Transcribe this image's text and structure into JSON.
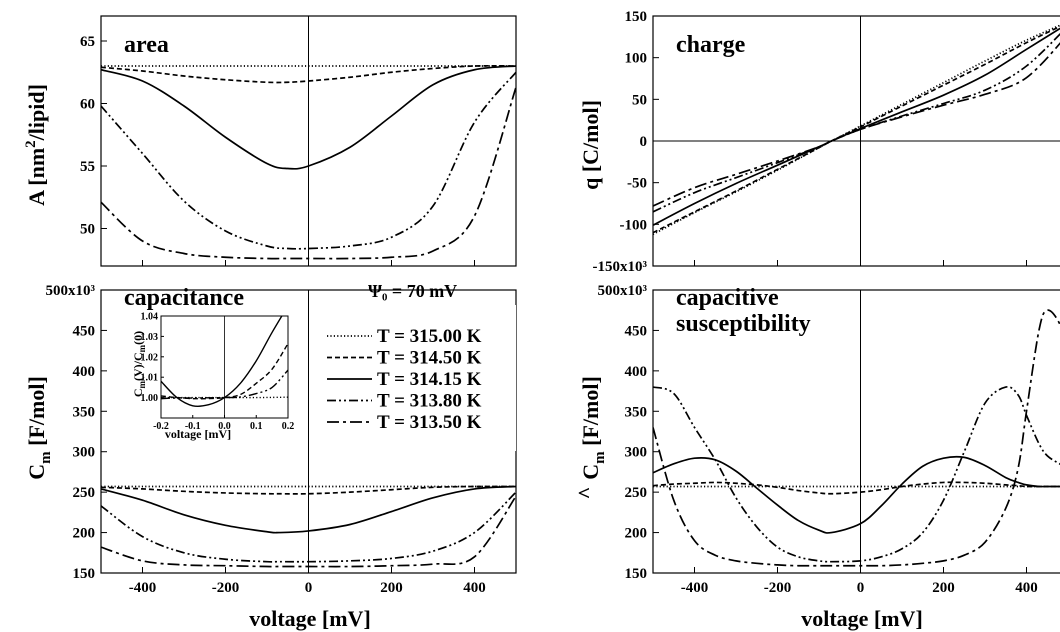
{
  "styles": {
    "s315_00": "1.2 2.2",
    "s314_50": "5 3",
    "s314_15": "",
    "s313_80": "9 3 2 3 2 3",
    "s313_50": "12 4 3 4"
  },
  "legend": {
    "psi_label": "Ψ₀ = 70 mV",
    "entries": [
      {
        "label": "T = 315.00 K",
        "style": "s315_00"
      },
      {
        "label": "T = 314.50 K",
        "style": "s314_50"
      },
      {
        "label": "T = 314.15 K",
        "style": "s314_15"
      },
      {
        "label": "T = 313.80 K",
        "style": "s313_80"
      },
      {
        "label": "T = 313.50 K",
        "style": "s313_50"
      }
    ]
  },
  "chart_data": [
    {
      "id": "area",
      "type": "line",
      "title": "area",
      "xlabel": "",
      "ylabel": "A [nm²/lipid]",
      "xlim": [
        -500,
        500
      ],
      "ylim": [
        47,
        67
      ],
      "x_ticks": [
        -400,
        -200,
        0,
        200,
        400
      ],
      "x_tick_labels": [
        "",
        "",
        "",
        "",
        ""
      ],
      "y_ticks": [
        50,
        55,
        60,
        65
      ],
      "y_tick_labels": [
        "50",
        "55",
        "60",
        "65"
      ],
      "zero_lines": {
        "x": true,
        "y": false
      },
      "x": [
        -500,
        -400,
        -300,
        -200,
        -100,
        -50,
        0,
        100,
        200,
        300,
        400,
        500
      ],
      "series": [
        {
          "style": "s315_00",
          "values": [
            63.0,
            63.0,
            63.0,
            63.0,
            63.0,
            63.0,
            63.0,
            63.0,
            63.0,
            63.0,
            63.0,
            63.0
          ]
        },
        {
          "style": "s314_50",
          "values": [
            62.9,
            62.6,
            62.2,
            61.9,
            61.7,
            61.7,
            61.8,
            62.1,
            62.5,
            62.8,
            63.0,
            63.0
          ]
        },
        {
          "style": "s314_15",
          "values": [
            62.7,
            61.8,
            59.8,
            57.3,
            55.2,
            54.8,
            55.0,
            56.5,
            59.0,
            61.5,
            62.7,
            63.0
          ]
        },
        {
          "style": "s313_80",
          "values": [
            59.8,
            56.0,
            52.2,
            49.8,
            48.6,
            48.4,
            48.4,
            48.6,
            49.3,
            51.8,
            58.5,
            62.5
          ]
        },
        {
          "style": "s313_50",
          "values": [
            52.1,
            49.0,
            48.0,
            47.7,
            47.6,
            47.6,
            47.6,
            47.6,
            47.7,
            48.2,
            51.0,
            61.3
          ]
        }
      ]
    },
    {
      "id": "charge",
      "type": "line",
      "title": "charge",
      "xlabel": "",
      "ylabel": "q [C/mol]",
      "xlim": [
        -500,
        500
      ],
      "ylim": [
        -150000,
        150000
      ],
      "x_ticks": [
        -400,
        -200,
        0,
        200,
        400
      ],
      "x_tick_labels": [
        "",
        "",
        "",
        "",
        ""
      ],
      "y_ticks": [
        -150000,
        -100000,
        -50000,
        0,
        50000,
        100000,
        150000
      ],
      "y_tick_labels": [
        "-150x10³",
        "-100",
        "-50",
        "0",
        "50",
        "100",
        "150"
      ],
      "zero_lines": {
        "x": true,
        "y": true
      },
      "x": [
        -500,
        -400,
        -300,
        -200,
        -100,
        -70,
        0,
        100,
        200,
        300,
        400,
        500
      ],
      "series": [
        {
          "style": "s315_00",
          "values": [
            -112000,
            -86000,
            -61000,
            -35000,
            -8000,
            0,
            18000,
            44000,
            70000,
            96000,
            121000,
            143000
          ]
        },
        {
          "style": "s314_50",
          "values": [
            -110000,
            -85000,
            -60000,
            -34000,
            -8000,
            0,
            17000,
            42000,
            67000,
            92000,
            118000,
            142000
          ]
        },
        {
          "style": "s314_15",
          "values": [
            -101000,
            -75000,
            -51000,
            -29000,
            -7000,
            0,
            15000,
            35000,
            55000,
            79000,
            110000,
            141000
          ]
        },
        {
          "style": "s313_80",
          "values": [
            -85000,
            -62000,
            -44000,
            -26000,
            -7000,
            0,
            14000,
            30000,
            45000,
            61000,
            90000,
            138000
          ]
        },
        {
          "style": "s313_50",
          "values": [
            -78000,
            -56000,
            -40000,
            -24000,
            -7000,
            0,
            14000,
            29000,
            43000,
            56000,
            76000,
            128000
          ]
        }
      ]
    },
    {
      "id": "capacitance",
      "type": "line",
      "title": "capacitance",
      "xlabel": "voltage [mV]",
      "ylabel": "Cm [F/mol]",
      "xlim": [
        -500,
        500
      ],
      "ylim": [
        150000,
        500000
      ],
      "x_ticks": [
        -400,
        -200,
        0,
        200,
        400
      ],
      "x_tick_labels": [
        "-400",
        "-200",
        "0",
        "200",
        "400"
      ],
      "y_ticks": [
        150000,
        200000,
        250000,
        300000,
        350000,
        400000,
        450000,
        500000
      ],
      "y_tick_labels": [
        "150",
        "200",
        "250",
        "300",
        "350",
        "400",
        "450",
        "500x10³"
      ],
      "zero_lines": {
        "x": true,
        "y": false
      },
      "x": [
        -500,
        -400,
        -300,
        -200,
        -100,
        -70,
        0,
        100,
        200,
        300,
        400,
        500
      ],
      "series": [
        {
          "style": "s315_00",
          "values": [
            257000,
            257000,
            257000,
            257000,
            257000,
            257000,
            257000,
            257000,
            257000,
            257000,
            257000,
            257000
          ]
        },
        {
          "style": "s314_50",
          "values": [
            256000,
            254000,
            251000,
            249000,
            248000,
            248000,
            248000,
            250000,
            253000,
            256000,
            257000,
            257000
          ]
        },
        {
          "style": "s314_15",
          "values": [
            254000,
            240000,
            222000,
            209000,
            201000,
            200000,
            202000,
            210000,
            226000,
            243000,
            254000,
            257000
          ]
        },
        {
          "style": "s313_80",
          "values": [
            233000,
            195000,
            175000,
            167000,
            164000,
            164000,
            164000,
            165000,
            168000,
            177000,
            200000,
            250000
          ]
        },
        {
          "style": "s313_50",
          "values": [
            182000,
            165000,
            160000,
            159000,
            158000,
            158000,
            158000,
            158000,
            159000,
            161000,
            170000,
            245000
          ]
        }
      ],
      "inset": {
        "xlim": [
          -0.2,
          0.2
        ],
        "ylim": [
          0.99,
          1.04
        ],
        "x_ticks": [
          -0.2,
          -0.1,
          0.0,
          0.1,
          0.2
        ],
        "x_tick_labels": [
          "-0.2",
          "-0.1",
          "0.0",
          "0.1",
          "0.2"
        ],
        "y_ticks": [
          1.0,
          1.01,
          1.02,
          1.03,
          1.04
        ],
        "y_tick_labels": [
          "1.00",
          "1.01",
          "1.02",
          "1.03",
          "1.04"
        ],
        "xlabel": "voltage [mV]",
        "ylabel": "Cm(V)/Cm(0)",
        "x": [
          -0.2,
          -0.15,
          -0.1,
          -0.05,
          0.0,
          0.05,
          0.1,
          0.15,
          0.2
        ],
        "series": [
          {
            "style": "s315_00",
            "values": [
              1.0,
              1.0,
              1.0,
              1.0,
              1.0,
              1.0,
              1.0,
              1.0001,
              1.0002
            ]
          },
          {
            "style": "s314_50",
            "values": [
              1.0008,
              1.0,
              0.9995,
              0.9995,
              1.0,
              1.0015,
              1.007,
              1.014,
              1.0265
            ]
          },
          {
            "style": "s314_15",
            "values": [
              1.008,
              1.0,
              0.996,
              0.9965,
              1.0,
              1.007,
              1.018,
              1.032,
              1.045
            ]
          },
          {
            "style": "s313_80",
            "values": [
              0.9995,
              0.9998,
              0.9998,
              0.9999,
              1.0,
              1.0003,
              1.002,
              1.005,
              1.0135
            ]
          }
        ]
      }
    },
    {
      "id": "susceptibility",
      "type": "line",
      "title": "capacitive\nsusceptibility",
      "xlabel": "voltage [mV]",
      "ylabel": "Cm [F/mol]",
      "xlim": [
        -500,
        500
      ],
      "ylim": [
        150000,
        500000
      ],
      "x_ticks": [
        -400,
        -200,
        0,
        200,
        400
      ],
      "x_tick_labels": [
        "-400",
        "-200",
        "0",
        "200",
        "400"
      ],
      "y_ticks": [
        150000,
        200000,
        250000,
        300000,
        350000,
        400000,
        450000,
        500000
      ],
      "y_tick_labels": [
        "150",
        "200",
        "250",
        "300",
        "350",
        "400",
        "450",
        "500x10³"
      ],
      "zero_lines": {
        "x": true,
        "y": false
      },
      "x": [
        -500,
        -450,
        -400,
        -350,
        -300,
        -250,
        -200,
        -150,
        -100,
        -70,
        0,
        50,
        100,
        150,
        200,
        250,
        300,
        350,
        380,
        400,
        430,
        450,
        480,
        500
      ],
      "series": [
        {
          "style": "s315_00",
          "values": [
            257000,
            257000,
            257000,
            257000,
            257000,
            257000,
            257000,
            257000,
            257000,
            257000,
            257000,
            257000,
            257000,
            257000,
            257000,
            257000,
            257000,
            257000,
            257000,
            257000,
            257000,
            257000,
            257000,
            257000
          ]
        },
        {
          "style": "s314_50",
          "values": [
            258000,
            260000,
            261000,
            262000,
            261000,
            259000,
            256000,
            252000,
            249000,
            248000,
            250000,
            253000,
            257000,
            260000,
            262000,
            262000,
            261000,
            259000,
            258000,
            257000,
            257000,
            257000,
            257000,
            257000
          ]
        },
        {
          "style": "s314_15",
          "values": [
            274000,
            285000,
            292000,
            290000,
            276000,
            255000,
            234000,
            215000,
            203000,
            200000,
            211000,
            233000,
            260000,
            282000,
            292000,
            293000,
            283000,
            268000,
            262000,
            259000,
            257000,
            257000,
            257000,
            257000
          ]
        },
        {
          "style": "s313_80",
          "values": [
            380000,
            372000,
            330000,
            290000,
            243000,
            207000,
            182000,
            170000,
            165000,
            164000,
            165000,
            170000,
            180000,
            200000,
            240000,
            300000,
            360000,
            380000,
            370000,
            345000,
            310000,
            295000,
            285000,
            280000
          ]
        },
        {
          "style": "s313_50",
          "values": [
            330000,
            240000,
            190000,
            172000,
            165000,
            162000,
            160000,
            159000,
            159000,
            159000,
            159000,
            159000,
            160000,
            162000,
            165000,
            172000,
            188000,
            230000,
            280000,
            350000,
            450000,
            475000,
            458000,
            420000
          ]
        }
      ]
    }
  ]
}
